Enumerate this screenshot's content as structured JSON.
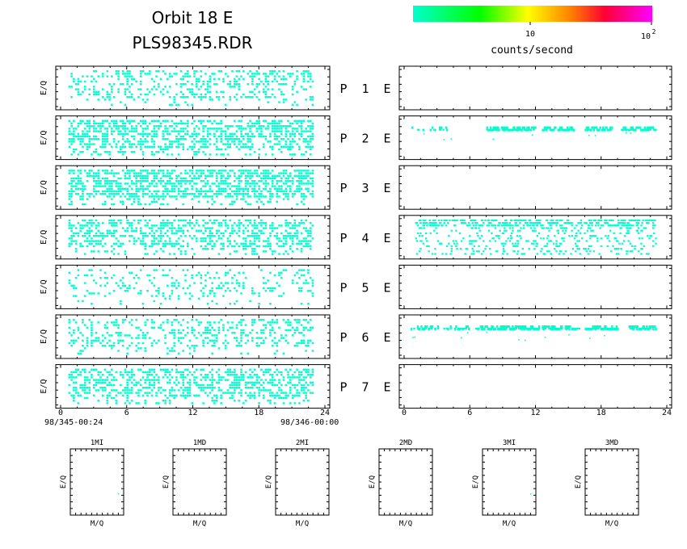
{
  "header": {
    "title_line1": "Orbit  18  E",
    "title_line2": "PLS98345.RDR"
  },
  "colorbar": {
    "colors": [
      "#00ffcc",
      "#00ff00",
      "#ffff00",
      "#ff8000",
      "#ff0033",
      "#ff00ff"
    ],
    "scale": "log",
    "tick_10": "10",
    "tick_100_base": "10",
    "tick_100_exp": "2",
    "label": "counts/second"
  },
  "axes": {
    "ylabel": "E/Q",
    "xticks": [
      "0",
      "6",
      "12",
      "18",
      "24"
    ],
    "start_time": "98/345-00:24",
    "end_time": "98/346-00:00",
    "bottom_ylabel": "E/Q",
    "bottom_xlabel": "M/Q"
  },
  "panel_labels": [
    {
      "p": "P",
      "n": "1",
      "e": "E"
    },
    {
      "p": "P",
      "n": "2",
      "e": "E"
    },
    {
      "p": "P",
      "n": "3",
      "e": "E"
    },
    {
      "p": "P",
      "n": "4",
      "e": "E"
    },
    {
      "p": "P",
      "n": "5",
      "e": "E"
    },
    {
      "p": "P",
      "n": "6",
      "e": "E"
    },
    {
      "p": "P",
      "n": "7",
      "e": "E"
    }
  ],
  "bottom_panels": [
    {
      "title": "1MI"
    },
    {
      "title": "1MD"
    },
    {
      "title": "2MI"
    },
    {
      "title": "2MD"
    },
    {
      "title": "3MI"
    },
    {
      "title": "3MD"
    }
  ],
  "chart_data": {
    "type": "heatmap",
    "x_range_hours": [
      0,
      24
    ],
    "point_color": "#00ffcc",
    "left_panels_density": [
      0.3,
      0.55,
      0.6,
      0.42,
      0.18,
      0.3,
      0.45
    ],
    "left_panel_gaps_hours": [
      [
        20.2,
        20.8
      ],
      [
        20.2,
        20.8
      ],
      [],
      [
        20.3,
        20.9
      ],
      [],
      [
        20.1,
        20.7
      ],
      [
        20.0,
        20.6
      ]
    ],
    "right_panels_bands": [
      [],
      [
        [
          0.5,
          4.5,
          0.25
        ],
        [
          7.5,
          12.0,
          0.95
        ],
        [
          12.5,
          15.5,
          0.85
        ],
        [
          16.5,
          19.0,
          0.75
        ],
        [
          19.8,
          23.0,
          0.85
        ]
      ],
      [],
      [
        [
          1.0,
          23.0,
          0.25
        ]
      ],
      [],
      [
        [
          0.5,
          6.0,
          0.35
        ],
        [
          6.5,
          12.0,
          0.9
        ],
        [
          12.0,
          16.0,
          0.6
        ],
        [
          16.5,
          19.5,
          0.9
        ],
        [
          20.5,
          23.0,
          0.7
        ]
      ],
      []
    ]
  }
}
